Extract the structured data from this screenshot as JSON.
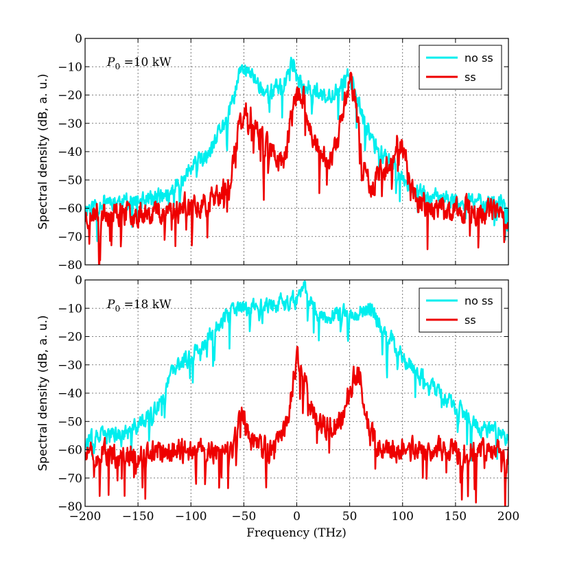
{
  "chart_data": [
    {
      "type": "line",
      "panel": "top",
      "title": "",
      "annotation": {
        "var": "P",
        "sub": "0",
        "rest": " =10 kW"
      },
      "xlabel": "",
      "ylabel": "Spectral density (dB, a. u.)",
      "xlim": [
        -200,
        200
      ],
      "ylim": [
        -80,
        0
      ],
      "xticks": [
        -200,
        -150,
        -100,
        -50,
        0,
        50,
        100,
        150,
        200
      ],
      "yticks": [
        0,
        -10,
        -20,
        -30,
        -40,
        -50,
        -60,
        -70,
        -80
      ],
      "ytick_labels": [
        "0",
        "−10",
        "−20",
        "−30",
        "−40",
        "−50",
        "−60",
        "−70",
        "−80"
      ],
      "grid": true,
      "legend": "top-right",
      "series": [
        {
          "name": "no ss",
          "color": "#00eeee",
          "envelope": [
            [
              -200,
              -60
            ],
            [
              -180,
              -57
            ],
            [
              -160,
              -58
            ],
            [
              -140,
              -57
            ],
            [
              -120,
              -55
            ],
            [
              -110,
              -50
            ],
            [
              -100,
              -46
            ],
            [
              -90,
              -43
            ],
            [
              -80,
              -40
            ],
            [
              -72,
              -32
            ],
            [
              -62,
              -25
            ],
            [
              -55,
              -13
            ],
            [
              -50,
              -11
            ],
            [
              -45,
              -12
            ],
            [
              -38,
              -15
            ],
            [
              -30,
              -19
            ],
            [
              -20,
              -18
            ],
            [
              -10,
              -14
            ],
            [
              -3,
              -8
            ],
            [
              0,
              -15
            ],
            [
              5,
              -17
            ],
            [
              12,
              -17
            ],
            [
              20,
              -19
            ],
            [
              28,
              -22
            ],
            [
              36,
              -18
            ],
            [
              44,
              -16
            ],
            [
              50,
              -12
            ],
            [
              55,
              -19
            ],
            [
              60,
              -25
            ],
            [
              66,
              -32
            ],
            [
              75,
              -38
            ],
            [
              85,
              -42
            ],
            [
              95,
              -46
            ],
            [
              108,
              -52
            ],
            [
              120,
              -55
            ],
            [
              140,
              -57
            ],
            [
              160,
              -58
            ],
            [
              180,
              -57
            ],
            [
              200,
              -59
            ]
          ],
          "noise": 9,
          "seed": 11
        },
        {
          "name": "ss",
          "color": "#ee0000",
          "envelope": [
            [
              -200,
              -63
            ],
            [
              -180,
              -61
            ],
            [
              -160,
              -62
            ],
            [
              -140,
              -61
            ],
            [
              -120,
              -60
            ],
            [
              -100,
              -59
            ],
            [
              -80,
              -57
            ],
            [
              -70,
              -55
            ],
            [
              -62,
              -48
            ],
            [
              -55,
              -32
            ],
            [
              -50,
              -27
            ],
            [
              -44,
              -26
            ],
            [
              -38,
              -29
            ],
            [
              -30,
              -35
            ],
            [
              -20,
              -42
            ],
            [
              -12,
              -44
            ],
            [
              -6,
              -30
            ],
            [
              0,
              -20
            ],
            [
              6,
              -21
            ],
            [
              12,
              -30
            ],
            [
              20,
              -40
            ],
            [
              30,
              -42
            ],
            [
              38,
              -38
            ],
            [
              44,
              -26
            ],
            [
              50,
              -13
            ],
            [
              55,
              -22
            ],
            [
              62,
              -45
            ],
            [
              70,
              -52
            ],
            [
              80,
              -47
            ],
            [
              90,
              -42
            ],
            [
              96,
              -35
            ],
            [
              102,
              -40
            ],
            [
              110,
              -55
            ],
            [
              120,
              -59
            ],
            [
              140,
              -61
            ],
            [
              160,
              -60
            ],
            [
              180,
              -61
            ],
            [
              200,
              -63
            ]
          ],
          "noise": 13,
          "seed": 23
        }
      ]
    },
    {
      "type": "line",
      "panel": "bottom",
      "title": "",
      "annotation": {
        "var": "P",
        "sub": "0",
        "rest": " =18 kW"
      },
      "xlabel": "Frequency (THz)",
      "ylabel": "Spectral density (dB, a. u.)",
      "xlim": [
        -200,
        200
      ],
      "ylim": [
        -80,
        0
      ],
      "xticks": [
        -200,
        -150,
        -100,
        -50,
        0,
        50,
        100,
        150,
        200
      ],
      "xtick_labels": [
        "−200",
        "−150",
        "−100",
        "−50",
        "0",
        "50",
        "100",
        "150",
        "200"
      ],
      "yticks": [
        0,
        -10,
        -20,
        -30,
        -40,
        -50,
        -60,
        -70,
        -80
      ],
      "ytick_labels": [
        "0",
        "−10",
        "−20",
        "−30",
        "−40",
        "−50",
        "−60",
        "−70",
        "−80"
      ],
      "grid": true,
      "legend": "top-right",
      "series": [
        {
          "name": "no ss",
          "color": "#00eeee",
          "envelope": [
            [
              -200,
              -57
            ],
            [
              -180,
              -55
            ],
            [
              -160,
              -54
            ],
            [
              -145,
              -50
            ],
            [
              -130,
              -45
            ],
            [
              -118,
              -33
            ],
            [
              -108,
              -29
            ],
            [
              -95,
              -25
            ],
            [
              -80,
              -18
            ],
            [
              -70,
              -14
            ],
            [
              -60,
              -11
            ],
            [
              -50,
              -10
            ],
            [
              -38,
              -9
            ],
            [
              -25,
              -9
            ],
            [
              -12,
              -8
            ],
            [
              0,
              -7
            ],
            [
              8,
              -3
            ],
            [
              12,
              -6
            ],
            [
              20,
              -11
            ],
            [
              30,
              -13
            ],
            [
              40,
              -12
            ],
            [
              50,
              -12
            ],
            [
              60,
              -11
            ],
            [
              70,
              -10
            ],
            [
              80,
              -16
            ],
            [
              90,
              -21
            ],
            [
              100,
              -27
            ],
            [
              110,
              -30
            ],
            [
              120,
              -35
            ],
            [
              135,
              -40
            ],
            [
              150,
              -45
            ],
            [
              170,
              -51
            ],
            [
              190,
              -54
            ],
            [
              200,
              -55
            ]
          ],
          "noise": 9,
          "seed": 37
        },
        {
          "name": "ss",
          "color": "#ee0000",
          "envelope": [
            [
              -200,
              -62
            ],
            [
              -180,
              -61
            ],
            [
              -160,
              -62
            ],
            [
              -140,
              -61
            ],
            [
              -120,
              -60
            ],
            [
              -100,
              -60
            ],
            [
              -80,
              -61
            ],
            [
              -60,
              -60
            ],
            [
              -52,
              -48
            ],
            [
              -45,
              -56
            ],
            [
              -30,
              -60
            ],
            [
              -15,
              -58
            ],
            [
              -8,
              -48
            ],
            [
              -4,
              -38
            ],
            [
              0,
              -27
            ],
            [
              4,
              -28
            ],
            [
              10,
              -40
            ],
            [
              18,
              -50
            ],
            [
              28,
              -52
            ],
            [
              40,
              -50
            ],
            [
              50,
              -40
            ],
            [
              55,
              -33
            ],
            [
              60,
              -35
            ],
            [
              66,
              -50
            ],
            [
              76,
              -59
            ],
            [
              90,
              -60
            ],
            [
              110,
              -60
            ],
            [
              130,
              -60
            ],
            [
              150,
              -60
            ],
            [
              170,
              -61
            ],
            [
              190,
              -60
            ],
            [
              200,
              -62
            ]
          ],
          "noise": 13,
          "seed": 51
        }
      ]
    }
  ]
}
